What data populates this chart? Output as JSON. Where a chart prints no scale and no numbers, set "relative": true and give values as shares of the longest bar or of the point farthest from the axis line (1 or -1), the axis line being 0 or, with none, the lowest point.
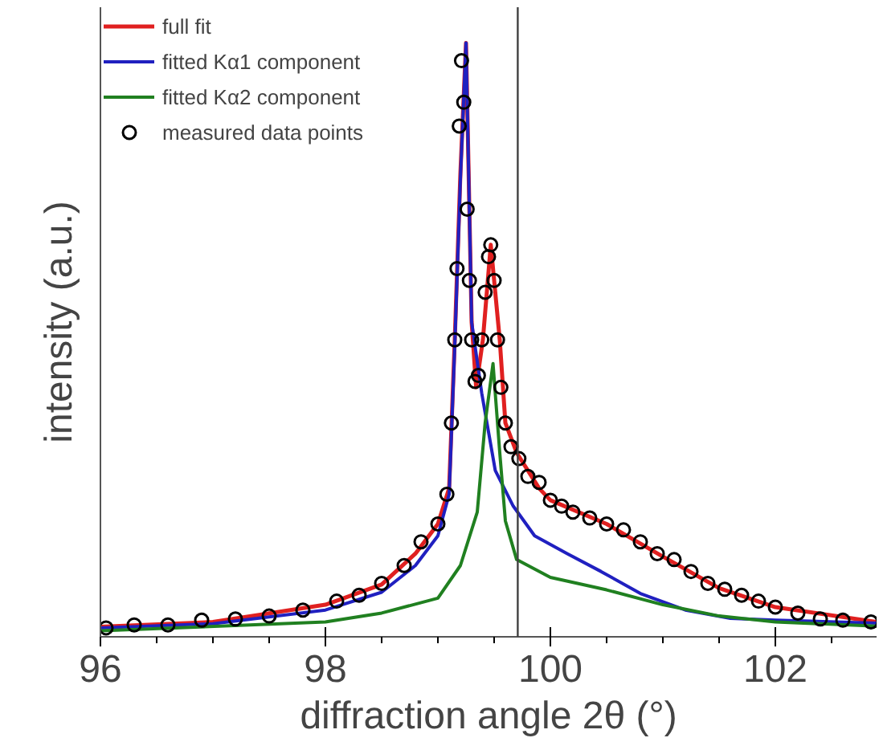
{
  "chart_data": {
    "type": "line",
    "relative": true,
    "xlabel": "diffraction angle 2θ (°)",
    "ylabel": "intensity (a.u.)",
    "xlim": [
      96,
      102.9
    ],
    "xticks": [
      96,
      98,
      100,
      102
    ],
    "series": [
      {
        "name": "full fit",
        "color": "#e02020",
        "x": [
          96,
          97,
          98,
          98.5,
          98.8,
          99.0,
          99.1,
          99.15,
          99.2,
          99.25,
          99.3,
          99.34,
          99.4,
          99.47,
          99.55,
          99.6,
          99.7,
          99.9,
          100.0,
          100.5,
          101.0,
          101.5,
          102.0,
          102.9
        ],
        "values": [
          0.017,
          0.025,
          0.054,
          0.088,
          0.14,
          0.19,
          0.25,
          0.5,
          0.78,
          1.0,
          0.53,
          0.42,
          0.5,
          0.66,
          0.5,
          0.36,
          0.31,
          0.25,
          0.23,
          0.19,
          0.135,
          0.082,
          0.05,
          0.025
        ]
      },
      {
        "name": "fitted Kα1 component",
        "color": "#2020c0",
        "x": [
          96,
          97,
          98,
          98.5,
          98.8,
          99.0,
          99.1,
          99.15,
          99.2,
          99.25,
          99.3,
          99.39,
          99.51,
          99.67,
          99.86,
          100.15,
          100.45,
          100.8,
          101.2,
          101.6,
          102.0,
          102.9
        ],
        "values": [
          0.015,
          0.022,
          0.045,
          0.075,
          0.12,
          0.17,
          0.24,
          0.49,
          0.77,
          1.0,
          0.53,
          0.41,
          0.28,
          0.22,
          0.17,
          0.14,
          0.11,
          0.073,
          0.045,
          0.031,
          0.028,
          0.023
        ]
      },
      {
        "name": "fitted Kα2 component",
        "color": "#208020",
        "x": [
          96,
          98,
          98.5,
          99.0,
          99.2,
          99.35,
          99.42,
          99.49,
          99.55,
          99.6,
          99.7,
          100.0,
          100.5,
          101.0,
          101.5,
          102.0,
          102.9
        ],
        "values": [
          0.01,
          0.025,
          0.04,
          0.065,
          0.12,
          0.21,
          0.36,
          0.46,
          0.31,
          0.195,
          0.13,
          0.1,
          0.079,
          0.054,
          0.035,
          0.025,
          0.018
        ]
      },
      {
        "name": "measured data points",
        "type": "scatter",
        "marker": "circle",
        "color": "#000000",
        "x": [
          96.05,
          96.3,
          96.6,
          96.9,
          97.2,
          97.5,
          97.8,
          98.1,
          98.3,
          98.5,
          98.7,
          98.85,
          99.0,
          99.08,
          99.12,
          99.15,
          99.17,
          99.19,
          99.21,
          99.23,
          99.26,
          99.28,
          99.3,
          99.33,
          99.36,
          99.39,
          99.42,
          99.45,
          99.47,
          99.5,
          99.53,
          99.56,
          99.6,
          99.65,
          99.72,
          99.8,
          99.9,
          100.0,
          100.1,
          100.2,
          100.35,
          100.5,
          100.65,
          100.8,
          100.95,
          101.1,
          101.25,
          101.4,
          101.55,
          101.7,
          101.85,
          102.0,
          102.2,
          102.4,
          102.6,
          102.85
        ],
        "values": [
          0.015,
          0.02,
          0.02,
          0.028,
          0.03,
          0.035,
          0.045,
          0.06,
          0.07,
          0.09,
          0.12,
          0.16,
          0.19,
          0.24,
          0.36,
          0.5,
          0.62,
          0.86,
          0.97,
          0.9,
          0.72,
          0.6,
          0.5,
          0.43,
          0.44,
          0.5,
          0.58,
          0.64,
          0.66,
          0.6,
          0.5,
          0.42,
          0.36,
          0.32,
          0.3,
          0.27,
          0.26,
          0.23,
          0.22,
          0.21,
          0.2,
          0.19,
          0.18,
          0.16,
          0.14,
          0.13,
          0.11,
          0.09,
          0.08,
          0.07,
          0.06,
          0.05,
          0.04,
          0.03,
          0.028,
          0.025
        ]
      }
    ],
    "line_style": "solid",
    "grid": false,
    "legend": "top left",
    "ref_lines": [
      {
        "axis": "x",
        "value": 99.71,
        "color": "#404040"
      }
    ]
  }
}
